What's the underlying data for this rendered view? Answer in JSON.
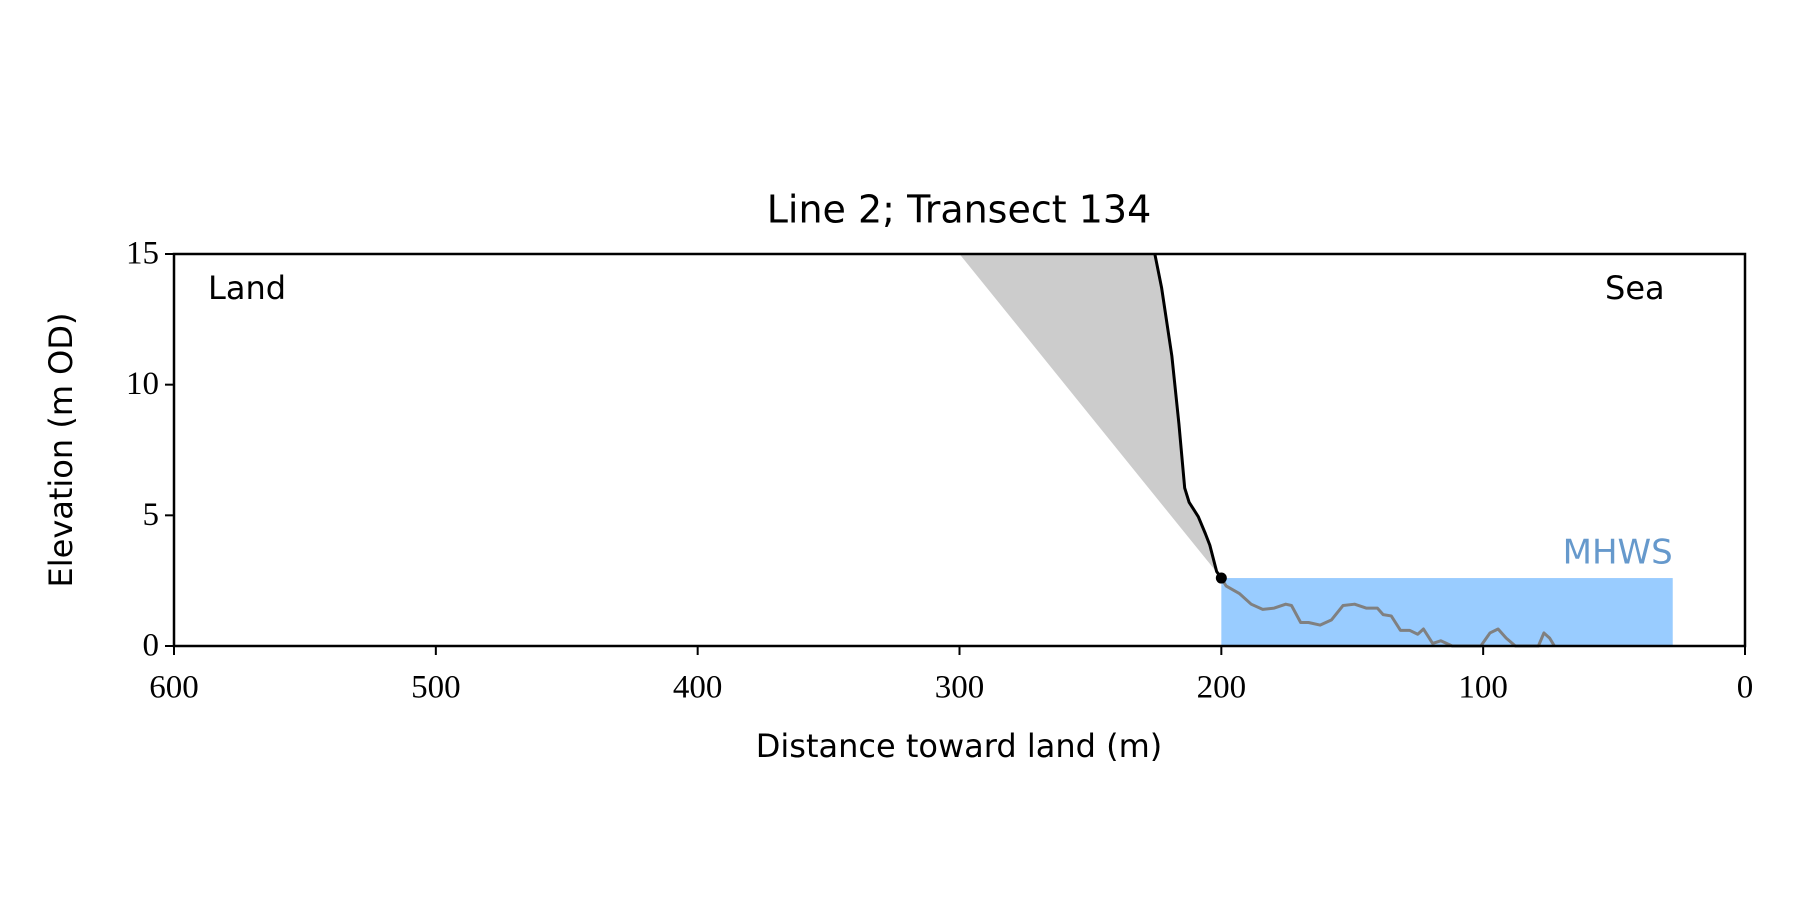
{
  "chart_data": {
    "type": "line",
    "title": "Line 2; Transect 134",
    "xlabel": "Distance toward land (m)",
    "ylabel": "Elevation (m OD)",
    "xlim": [
      600,
      0
    ],
    "ylim": [
      0,
      15
    ],
    "xticks": [
      600,
      500,
      400,
      300,
      200,
      100,
      0
    ],
    "yticks": [
      0,
      5,
      10,
      15
    ],
    "annotations": [
      "Land",
      "Sea"
    ],
    "shaded": {
      "color": "#cccccc",
      "x": [
        300,
        225.4,
        222.8,
        218.9,
        216.2,
        214,
        212.3,
        208.8,
        206.1,
        204.4,
        201.8,
        200
      ],
      "values": [
        15,
        15,
        13.7,
        11.1,
        8.5,
        6.05,
        5.5,
        4.95,
        4.3,
        3.86,
        2.85,
        2.6
      ]
    },
    "mhws": {
      "label": "MHWS",
      "value": 2.6,
      "x": [
        200,
        27.6
      ],
      "color": "#99ccff",
      "label_color": "#6699cc"
    },
    "series": [
      {
        "color": "#000000",
        "x": [
          225.4,
          222.8,
          218.9,
          216.2,
          214,
          212.3,
          208.8,
          206.1,
          204.4,
          201.8,
          200
        ],
        "values": [
          15,
          13.7,
          11.1,
          8.5,
          6.05,
          5.5,
          4.95,
          4.3,
          3.86,
          2.85,
          2.6
        ]
      },
      {
        "color": "#808080",
        "x": [
          200,
          198.2,
          193,
          188.6,
          184.2,
          179.8,
          175.4,
          173.2,
          169.7,
          166.7,
          162.3,
          157.9,
          153.5,
          149.1,
          144.7,
          140.4,
          138.2,
          135.1,
          131.6,
          128.1,
          125,
          122.8,
          119.3,
          116.2,
          111.8,
          100.9,
          97.4,
          94.3,
          91.2,
          87.7,
          78.9,
          76.8,
          74.6,
          72.8
        ],
        "values": [
          2.6,
          2.3,
          2.0,
          1.6,
          1.4,
          1.45,
          1.6,
          1.55,
          0.9,
          0.9,
          0.8,
          1.0,
          1.55,
          1.6,
          1.45,
          1.45,
          1.2,
          1.15,
          0.6,
          0.6,
          0.45,
          0.65,
          0.1,
          0.2,
          0,
          0,
          0.5,
          0.65,
          0.3,
          0,
          0,
          0.5,
          0.3,
          0
        ]
      }
    ],
    "point": {
      "x": 200,
      "value": 2.6,
      "color": "#000000"
    }
  }
}
